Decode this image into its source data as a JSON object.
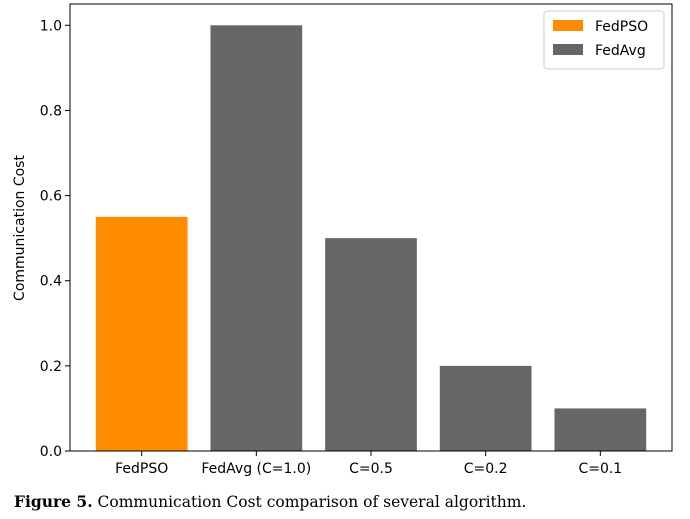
{
  "chart_data": {
    "type": "bar",
    "categories": [
      "FedPSO",
      "FedAvg (C=1.0)",
      "C=0.5",
      "C=0.2",
      "C=0.1"
    ],
    "series": [
      {
        "name": "FedPSO",
        "color": "#ff8c00",
        "values": [
          0.55,
          null,
          null,
          null,
          null
        ]
      },
      {
        "name": "FedAvg",
        "color": "#666666",
        "values": [
          null,
          1.0,
          0.5,
          0.2,
          0.1
        ]
      }
    ],
    "ylabel": "Communication Cost",
    "xlabel": "",
    "ylim": [
      0,
      1.05
    ],
    "yticks": [
      0.0,
      0.2,
      0.4,
      0.6,
      0.8,
      1.0
    ],
    "ytick_labels": [
      "0.0",
      "0.2",
      "0.4",
      "0.6",
      "0.8",
      "1.0"
    ],
    "legend_position": "top-right",
    "grid": false
  },
  "caption": {
    "label": "Figure 5.",
    "text": " Communication Cost comparison of several algorithm."
  }
}
